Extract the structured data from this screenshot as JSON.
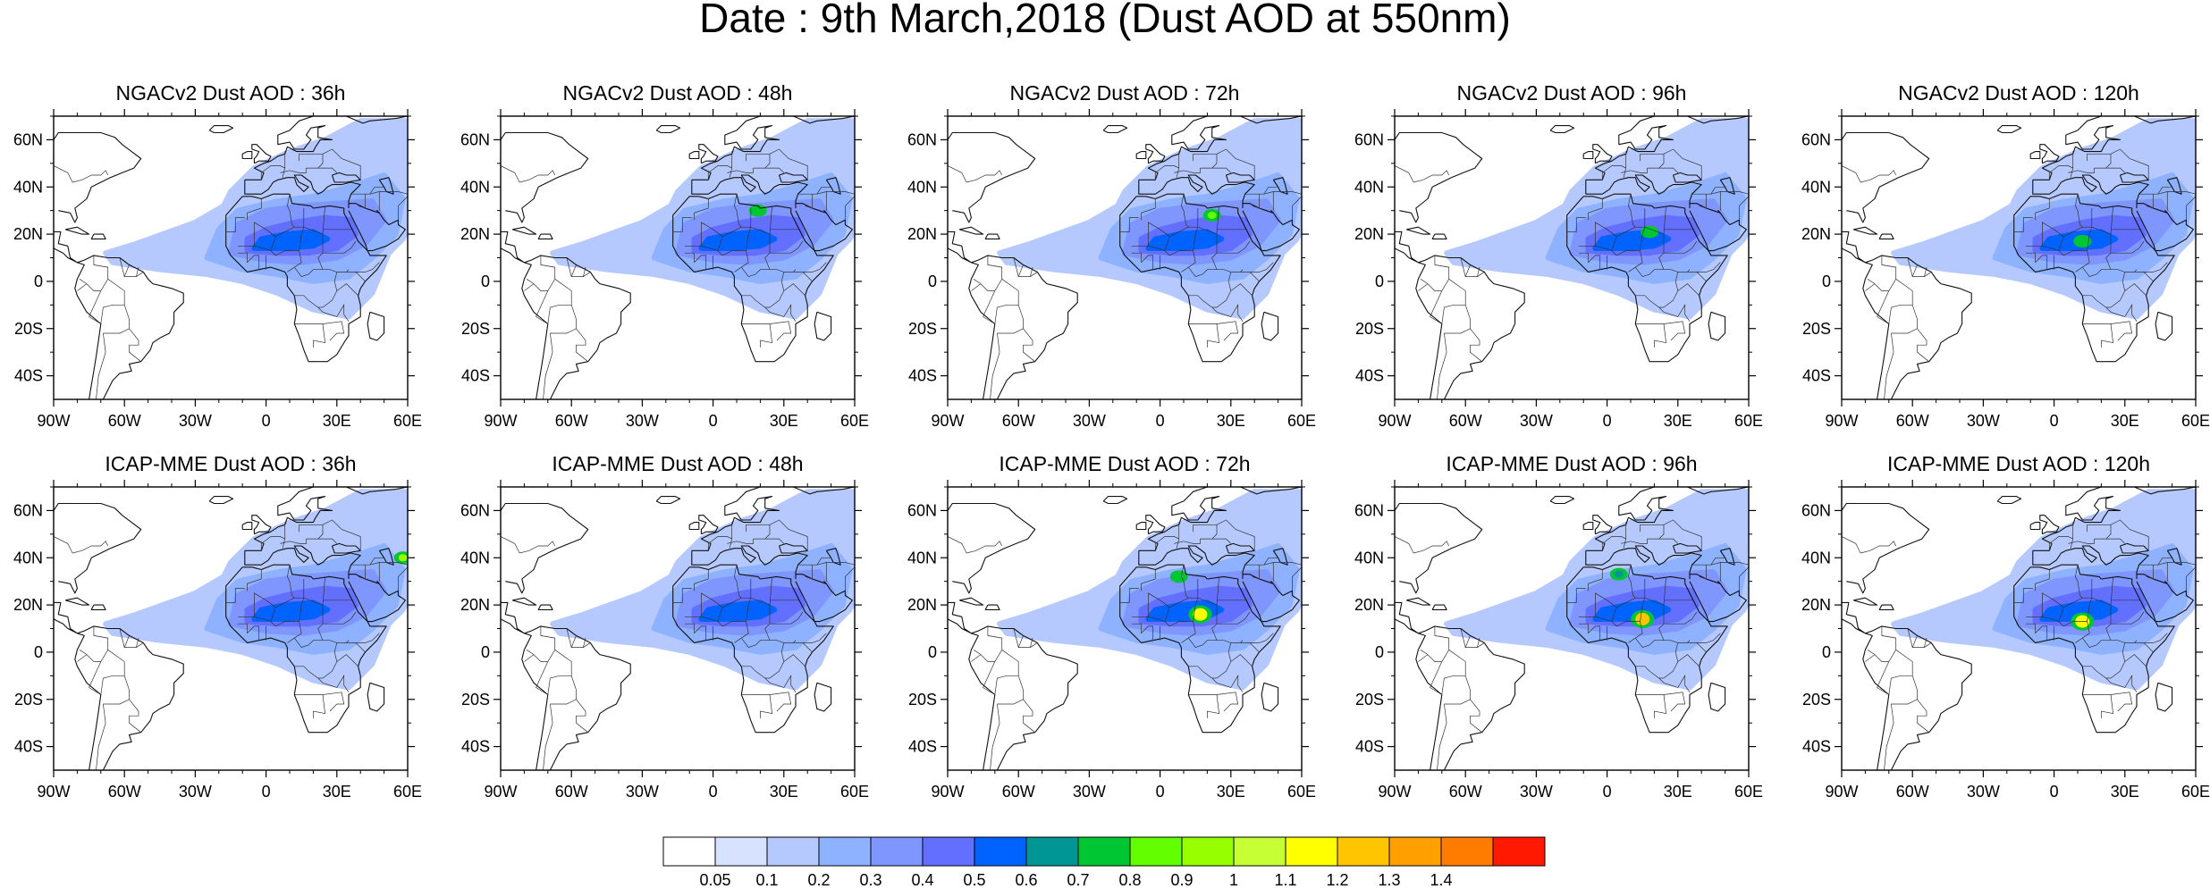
{
  "title": "Date : 9th March,2018 (Dust AOD at 550nm)",
  "axes": {
    "lon_range": [
      -90,
      60
    ],
    "lat_range": [
      -50,
      70
    ],
    "lon_ticks": [
      "90W",
      "60W",
      "30W",
      "0",
      "30E",
      "60E"
    ],
    "lat_ticks": [
      "60N",
      "40N",
      "20N",
      "0",
      "20S",
      "40S"
    ]
  },
  "panels": [
    {
      "title": "NGACv2 Dust AOD : 36h",
      "hotspots": []
    },
    {
      "title": "NGACv2 Dust AOD : 48h",
      "hotspots": [
        {
          "lon": 19,
          "lat": 30,
          "level": "0.7"
        }
      ]
    },
    {
      "title": "NGACv2 Dust AOD : 72h",
      "hotspots": [
        {
          "lon": 22,
          "lat": 28,
          "level": "0.8"
        }
      ]
    },
    {
      "title": "NGACv2 Dust AOD : 96h",
      "hotspots": [
        {
          "lon": 18,
          "lat": 21,
          "level": "0.7"
        }
      ]
    },
    {
      "title": "NGACv2 Dust AOD : 120h",
      "hotspots": [
        {
          "lon": 12,
          "lat": 17,
          "level": "0.7"
        }
      ]
    },
    {
      "title": "ICAP-MME Dust AOD : 36h",
      "hotspots": [
        {
          "lon": 58,
          "lat": 40,
          "level": "0.9"
        }
      ]
    },
    {
      "title": "ICAP-MME Dust AOD : 48h",
      "hotspots": []
    },
    {
      "title": "ICAP-MME Dust AOD : 72h",
      "hotspots": [
        {
          "lon": 17,
          "lat": 16,
          "level": "1.1"
        },
        {
          "lon": 8,
          "lat": 32,
          "level": "0.7"
        }
      ]
    },
    {
      "title": "ICAP-MME Dust AOD : 96h",
      "hotspots": [
        {
          "lon": 15,
          "lat": 14,
          "level": "1.2"
        },
        {
          "lon": 5,
          "lat": 33,
          "level": "0.6"
        }
      ]
    },
    {
      "title": "ICAP-MME Dust AOD : 120h",
      "hotspots": [
        {
          "lon": 12,
          "lat": 13,
          "level": "1.1"
        }
      ]
    }
  ],
  "colorbar": {
    "labels": [
      "0.05",
      "0.1",
      "0.2",
      "0.3",
      "0.4",
      "0.5",
      "0.6",
      "0.7",
      "0.8",
      "0.9",
      "1",
      "1.1",
      "1.2",
      "1.3",
      "1.4"
    ],
    "colors": [
      "#ffffff",
      "#d6e2ff",
      "#b5c9ff",
      "#8eb2ff",
      "#7f96ff",
      "#6370ff",
      "#0063ff",
      "#009696",
      "#00c633",
      "#63ff00",
      "#96ff00",
      "#c6ff33",
      "#ffff00",
      "#ffc600",
      "#ffa000",
      "#ff7c00",
      "#ff1900"
    ]
  }
}
